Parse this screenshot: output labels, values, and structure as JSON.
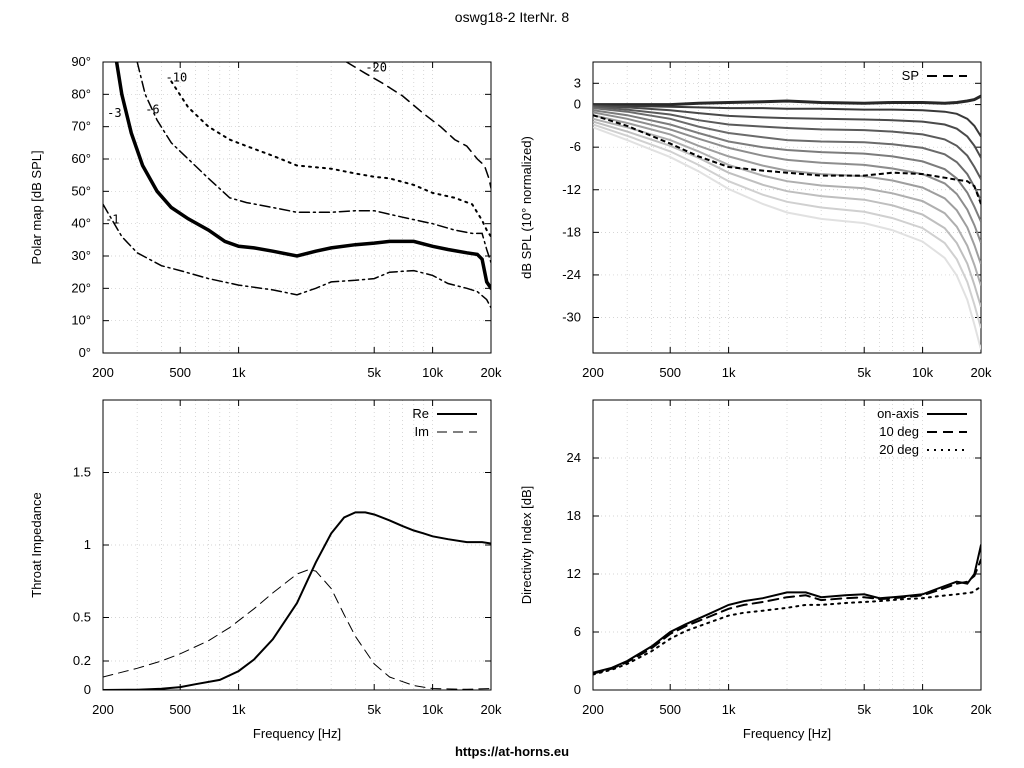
{
  "title": "oswg18-2 IterNr. 8",
  "footer": "https://at-horns.eu",
  "chart_data": [
    {
      "id": "polar",
      "type": "line",
      "title": "",
      "xlabel": "",
      "ylabel": "Polar map [dB SPL]",
      "xscale": "log",
      "xlim": [
        200,
        20000
      ],
      "ylim": [
        0,
        90
      ],
      "xticks": [
        200,
        500,
        1000,
        5000,
        10000,
        20000
      ],
      "xtick_labels": [
        "200",
        "500",
        "1k",
        "5k",
        "10k",
        "20k"
      ],
      "yticks": [
        0,
        10,
        20,
        30,
        40,
        50,
        60,
        70,
        80,
        90
      ],
      "ytick_labels": [
        "0°",
        "10°",
        "20°",
        "30°",
        "40°",
        "50°",
        "60°",
        "70°",
        "80°",
        "90°"
      ],
      "grid": true,
      "series": [
        {
          "name": "-1",
          "style": "dashdot",
          "width": 1.5,
          "label_at": [
            205,
            40
          ],
          "x": [
            200,
            250,
            300,
            400,
            500,
            700,
            1000,
            1500,
            2000,
            2500,
            3000,
            4000,
            5000,
            6000,
            8000,
            10000,
            12000,
            15000,
            17000,
            19000,
            20000
          ],
          "y": [
            46,
            36,
            31,
            27,
            25.5,
            23,
            21,
            19.5,
            18,
            20,
            22,
            22.5,
            23,
            25,
            25.5,
            24,
            21.5,
            20,
            19,
            16.5,
            14
          ]
        },
        {
          "name": "-3",
          "style": "solid",
          "width": 3.5,
          "label_at": [
            210,
            73
          ],
          "x": [
            235,
            250,
            280,
            320,
            380,
            450,
            550,
            700,
            850,
            1000,
            1200,
            1500,
            2000,
            2500,
            3000,
            4000,
            5000,
            6000,
            8000,
            10000,
            12000,
            15000,
            17000,
            18000,
            19000,
            20000
          ],
          "y": [
            90,
            80,
            68,
            58,
            50,
            45,
            41.5,
            38,
            34.5,
            33,
            32.5,
            31.5,
            30,
            31.5,
            32.5,
            33.5,
            34,
            34.5,
            34.5,
            33,
            32,
            31,
            30.5,
            29,
            22,
            20
          ]
        },
        {
          "name": "-6",
          "style": "dashdot",
          "width": 1.5,
          "label_at": [
            330,
            74
          ],
          "x": [
            300,
            330,
            380,
            450,
            550,
            700,
            900,
            1100,
            1500,
            2000,
            2500,
            3000,
            4000,
            5000,
            7000,
            10000,
            13000,
            16000,
            18000,
            19000,
            20000
          ],
          "y": [
            90,
            80,
            72,
            65,
            60,
            54,
            48,
            46.5,
            45,
            43.5,
            43.5,
            43.5,
            44,
            44,
            42,
            40,
            38,
            37,
            37,
            32,
            28
          ]
        },
        {
          "name": "-10",
          "style": "dotted",
          "width": 2,
          "label_at": [
            420,
            84
          ],
          "x": [
            450,
            550,
            700,
            900,
            1100,
            1500,
            2000,
            3000,
            4000,
            5000,
            6000,
            8000,
            10000,
            13000,
            16000,
            18000,
            19000,
            20000
          ],
          "y": [
            84,
            76,
            70,
            66,
            64,
            61,
            58,
            57,
            55.5,
            54.5,
            54,
            52,
            49.5,
            48,
            46,
            41,
            38,
            36
          ]
        },
        {
          "name": "-20",
          "style": "dashed",
          "width": 1.5,
          "label_at": [
            4500,
            87
          ],
          "x": [
            3600,
            4500,
            5500,
            7000,
            9000,
            11000,
            13000,
            15000,
            17000,
            18500,
            19500,
            20000
          ],
          "y": [
            90,
            86.5,
            83.5,
            79.5,
            74,
            70,
            66,
            64,
            60,
            58,
            54,
            51
          ]
        }
      ]
    },
    {
      "id": "spl",
      "type": "line",
      "title": "",
      "xlabel": "",
      "ylabel": "dB SPL (10° normalized)",
      "xscale": "log",
      "xlim": [
        200,
        20000
      ],
      "ylim": [
        -35,
        6
      ],
      "xticks": [
        200,
        500,
        1000,
        5000,
        10000,
        20000
      ],
      "xtick_labels": [
        "200",
        "500",
        "1k",
        "5k",
        "10k",
        "20k"
      ],
      "yticks": [
        3,
        0,
        -6,
        -12,
        -18,
        -24,
        -30
      ],
      "ytick_labels": [
        "3",
        "0",
        "-6",
        "-12",
        "-18",
        "-24",
        "-30"
      ],
      "grid": true,
      "legend": "top-right",
      "x": [
        200,
        300,
        500,
        700,
        1000,
        1500,
        2000,
        3000,
        5000,
        7000,
        10000,
        13000,
        15000,
        17000,
        18500,
        20000
      ],
      "series": [
        {
          "name": "",
          "y": [
            0,
            0,
            0,
            0.2,
            0.3,
            0.4,
            0.5,
            0.3,
            0.2,
            0.3,
            0.3,
            0.2,
            0.3,
            0.5,
            0.7,
            1.2
          ]
        },
        {
          "name": "",
          "y": [
            -0.1,
            -0.2,
            -0.3,
            -0.4,
            -0.5,
            -0.5,
            -0.6,
            -0.6,
            -0.7,
            -0.7,
            -0.8,
            -1.0,
            -1.3,
            -2.0,
            -3.0,
            -4.5
          ]
        },
        {
          "name": "",
          "y": [
            -0.2,
            -0.4,
            -0.8,
            -1.2,
            -1.6,
            -1.8,
            -1.9,
            -2.0,
            -2.1,
            -2.2,
            -2.4,
            -2.8,
            -3.4,
            -4.5,
            -5.8,
            -7.5
          ]
        },
        {
          "name": "",
          "y": [
            -0.3,
            -0.7,
            -1.4,
            -2.2,
            -2.8,
            -3.1,
            -3.3,
            -3.5,
            -3.6,
            -3.8,
            -4.2,
            -4.9,
            -5.8,
            -7.2,
            -8.8,
            -10.5
          ]
        },
        {
          "name": "",
          "y": [
            -0.5,
            -1.0,
            -2.0,
            -3.1,
            -4.0,
            -4.6,
            -5.0,
            -5.2,
            -5.3,
            -5.6,
            -6.1,
            -7.0,
            -8.1,
            -9.8,
            -11.6,
            -13.5
          ]
        },
        {
          "name": "",
          "y": [
            -0.8,
            -1.5,
            -2.8,
            -4.0,
            -5.2,
            -6.0,
            -6.4,
            -6.7,
            -6.9,
            -7.3,
            -8.0,
            -9.1,
            -10.4,
            -12.4,
            -14.4,
            -16.5
          ]
        },
        {
          "name": "",
          "y": [
            -1.1,
            -2.0,
            -3.5,
            -4.8,
            -6.1,
            -7.2,
            -7.8,
            -8.2,
            -8.5,
            -9.0,
            -9.8,
            -11.1,
            -12.6,
            -14.8,
            -17.0,
            -19.5
          ]
        },
        {
          "name": "",
          "y": [
            -1.5,
            -2.6,
            -4.2,
            -5.8,
            -7.3,
            -8.6,
            -9.3,
            -9.8,
            -10.1,
            -10.7,
            -11.7,
            -13.2,
            -14.9,
            -17.3,
            -19.8,
            -22.5
          ]
        },
        {
          "name": "",
          "y": [
            -2.0,
            -3.2,
            -5.0,
            -6.6,
            -8.5,
            -10.0,
            -10.8,
            -11.4,
            -11.8,
            -12.5,
            -13.6,
            -15.3,
            -17.2,
            -19.9,
            -22.6,
            -25.5
          ]
        },
        {
          "name": "",
          "y": [
            -2.4,
            -3.8,
            -5.8,
            -7.5,
            -9.6,
            -11.3,
            -12.2,
            -12.9,
            -13.4,
            -14.2,
            -15.5,
            -17.4,
            -19.5,
            -22.4,
            -25.4,
            -28.5
          ]
        },
        {
          "name": "",
          "y": [
            -2.8,
            -4.4,
            -6.6,
            -8.5,
            -10.8,
            -12.7,
            -13.7,
            -14.5,
            -15.1,
            -16.0,
            -17.4,
            -19.5,
            -21.8,
            -25.0,
            -28.2,
            -31.5
          ]
        },
        {
          "name": "",
          "y": [
            -3.2,
            -5.0,
            -7.4,
            -9.4,
            -11.9,
            -14.0,
            -15.2,
            -16.1,
            -16.7,
            -17.7,
            -19.3,
            -21.6,
            -24.1,
            -27.5,
            -31.0,
            -34.5
          ]
        }
      ],
      "sp": {
        "name": "SP",
        "y": [
          -1.5,
          -3.0,
          -5.5,
          -7.3,
          -8.8,
          -9.3,
          -9.6,
          -10.0,
          -10.0,
          -9.6,
          -9.8,
          -10.3,
          -10.6,
          -10.8,
          -11.5,
          -14.0
        ]
      }
    },
    {
      "id": "impedance",
      "type": "line",
      "title": "",
      "xlabel": "Frequency [Hz]",
      "ylabel": "Throat Impedance",
      "xscale": "log",
      "xlim": [
        200,
        20000
      ],
      "ylim": [
        0,
        2
      ],
      "xticks": [
        200,
        500,
        1000,
        5000,
        10000,
        20000
      ],
      "xtick_labels": [
        "200",
        "500",
        "1k",
        "5k",
        "10k",
        "20k"
      ],
      "yticks": [
        0,
        0.2,
        0.5,
        1,
        1.5
      ],
      "ytick_labels": [
        "0",
        "0.2",
        "0.5",
        "1",
        "1.5"
      ],
      "grid": true,
      "legend": "top-right",
      "series": [
        {
          "name": "Re",
          "style": "solid",
          "width": 2,
          "x": [
            200,
            300,
            400,
            500,
            600,
            800,
            1000,
            1200,
            1500,
            2000,
            2500,
            3000,
            3500,
            4000,
            4500,
            5000,
            6000,
            7000,
            8000,
            9000,
            10000,
            12000,
            15000,
            18000,
            20000
          ],
          "y": [
            0,
            0.002,
            0.008,
            0.02,
            0.04,
            0.07,
            0.13,
            0.21,
            0.35,
            0.6,
            0.88,
            1.08,
            1.19,
            1.225,
            1.225,
            1.21,
            1.17,
            1.13,
            1.1,
            1.08,
            1.06,
            1.04,
            1.02,
            1.02,
            1.01
          ]
        },
        {
          "name": "Im",
          "style": "dashed",
          "width": 1,
          "x": [
            200,
            300,
            400,
            500,
            700,
            900,
            1200,
            1500,
            2000,
            2300,
            2500,
            3000,
            3500,
            4000,
            5000,
            6000,
            8000,
            10000,
            15000,
            20000
          ],
          "y": [
            0.09,
            0.15,
            0.2,
            0.25,
            0.34,
            0.43,
            0.56,
            0.67,
            0.8,
            0.83,
            0.82,
            0.7,
            0.52,
            0.37,
            0.18,
            0.09,
            0.03,
            0.01,
            0.005,
            0.01
          ]
        }
      ]
    },
    {
      "id": "di",
      "type": "line",
      "title": "",
      "xlabel": "Frequency [Hz]",
      "ylabel": "Directivity Index [dB]",
      "xscale": "log",
      "xlim": [
        200,
        20000
      ],
      "ylim": [
        0,
        30
      ],
      "xticks": [
        200,
        500,
        1000,
        5000,
        10000,
        20000
      ],
      "xtick_labels": [
        "200",
        "500",
        "1k",
        "5k",
        "10k",
        "20k"
      ],
      "yticks": [
        0,
        6,
        12,
        18,
        24
      ],
      "ytick_labels": [
        "0",
        "6",
        "12",
        "18",
        "24"
      ],
      "grid": true,
      "legend": "top-right",
      "series": [
        {
          "name": "on-axis",
          "style": "solid",
          "width": 2,
          "x": [
            200,
            250,
            300,
            400,
            500,
            600,
            800,
            1000,
            1200,
            1500,
            2000,
            2500,
            3000,
            4000,
            5000,
            6000,
            7000,
            8000,
            10000,
            12000,
            15000,
            17000,
            18500,
            20000
          ],
          "y": [
            1.8,
            2.3,
            3.0,
            4.5,
            6.0,
            6.8,
            7.9,
            8.8,
            9.2,
            9.5,
            10.1,
            10.1,
            9.6,
            9.8,
            9.9,
            9.5,
            9.6,
            9.7,
            9.9,
            10.5,
            11.2,
            11.0,
            12.0,
            15.0
          ]
        },
        {
          "name": "10 deg",
          "style": "dashed",
          "width": 2,
          "x": [
            200,
            250,
            300,
            400,
            500,
            600,
            800,
            1000,
            1200,
            1500,
            2000,
            2500,
            3000,
            4000,
            5000,
            6000,
            7000,
            8000,
            10000,
            12000,
            15000,
            17000,
            18500,
            20000
          ],
          "y": [
            1.7,
            2.2,
            2.9,
            4.3,
            5.8,
            6.6,
            7.6,
            8.4,
            8.8,
            9.1,
            9.6,
            9.8,
            9.3,
            9.5,
            9.6,
            9.4,
            9.5,
            9.6,
            9.8,
            10.3,
            11.0,
            11.2,
            11.8,
            13.5
          ]
        },
        {
          "name": "20 deg",
          "style": "dotted",
          "width": 2,
          "x": [
            200,
            250,
            300,
            400,
            500,
            600,
            800,
            1000,
            1200,
            1500,
            2000,
            2500,
            3000,
            4000,
            5000,
            6000,
            8000,
            10000,
            12000,
            15000,
            18000,
            20000
          ],
          "y": [
            1.6,
            2.1,
            2.7,
            4.0,
            5.3,
            6.1,
            7.0,
            7.7,
            8.0,
            8.2,
            8.5,
            8.8,
            8.8,
            9.0,
            9.1,
            9.2,
            9.4,
            9.5,
            9.7,
            9.9,
            10.1,
            10.7
          ]
        }
      ]
    }
  ]
}
